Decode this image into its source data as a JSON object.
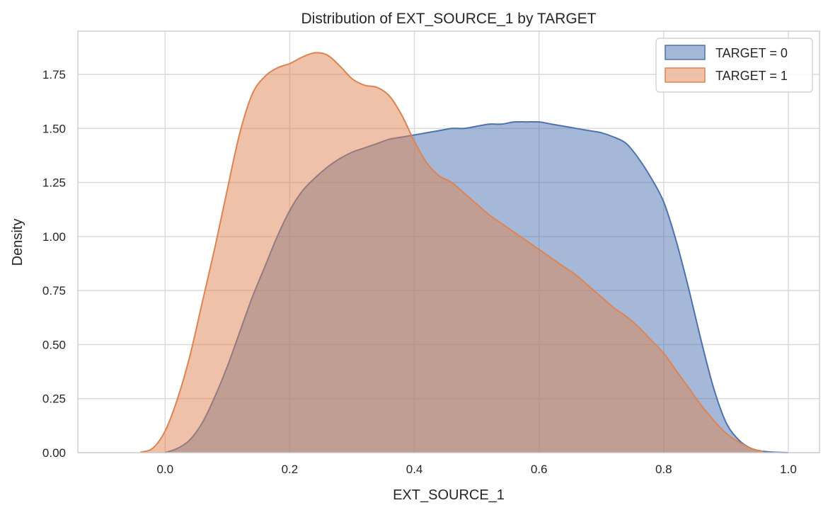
{
  "chart_data": {
    "type": "area",
    "title": "Distribution of EXT_SOURCE_1 by TARGET",
    "xlabel": "EXT_SOURCE_1",
    "ylabel": "Density",
    "xlim": [
      -0.14,
      1.05
    ],
    "ylim": [
      0,
      1.95
    ],
    "xticks": [
      0.0,
      0.2,
      0.4,
      0.6,
      0.8,
      1.0
    ],
    "xtick_labels": [
      "0.0",
      "0.2",
      "0.4",
      "0.6",
      "0.8",
      "1.0"
    ],
    "yticks": [
      0.0,
      0.25,
      0.5,
      0.75,
      1.0,
      1.25,
      1.5,
      1.75
    ],
    "ytick_labels": [
      "0.00",
      "0.25",
      "0.50",
      "0.75",
      "1.00",
      "1.25",
      "1.50",
      "1.75"
    ],
    "grid": true,
    "legend": "top-right",
    "series": [
      {
        "name": "TARGET = 0",
        "color": "#4c72b0",
        "x": [
          0.0,
          0.02,
          0.04,
          0.06,
          0.08,
          0.1,
          0.12,
          0.14,
          0.16,
          0.18,
          0.2,
          0.22,
          0.24,
          0.26,
          0.28,
          0.3,
          0.32,
          0.34,
          0.36,
          0.38,
          0.4,
          0.42,
          0.44,
          0.46,
          0.48,
          0.5,
          0.52,
          0.54,
          0.56,
          0.58,
          0.6,
          0.62,
          0.64,
          0.66,
          0.68,
          0.7,
          0.72,
          0.74,
          0.76,
          0.78,
          0.8,
          0.82,
          0.84,
          0.86,
          0.88,
          0.9,
          0.92,
          0.94,
          0.96,
          0.98,
          1.0
        ],
        "values": [
          0.0,
          0.02,
          0.06,
          0.14,
          0.26,
          0.4,
          0.56,
          0.72,
          0.86,
          1.0,
          1.12,
          1.21,
          1.27,
          1.32,
          1.36,
          1.39,
          1.41,
          1.43,
          1.45,
          1.46,
          1.47,
          1.48,
          1.49,
          1.5,
          1.5,
          1.51,
          1.52,
          1.52,
          1.53,
          1.53,
          1.53,
          1.52,
          1.51,
          1.5,
          1.49,
          1.48,
          1.46,
          1.43,
          1.36,
          1.27,
          1.16,
          0.98,
          0.76,
          0.52,
          0.3,
          0.14,
          0.06,
          0.02,
          0.006,
          0.002,
          0.0
        ]
      },
      {
        "name": "TARGET = 1",
        "color": "#dd8452",
        "x": [
          -0.04,
          -0.02,
          0.0,
          0.02,
          0.04,
          0.06,
          0.08,
          0.1,
          0.12,
          0.14,
          0.16,
          0.18,
          0.2,
          0.22,
          0.24,
          0.26,
          0.28,
          0.3,
          0.32,
          0.34,
          0.36,
          0.38,
          0.4,
          0.42,
          0.44,
          0.46,
          0.48,
          0.5,
          0.52,
          0.54,
          0.56,
          0.58,
          0.6,
          0.62,
          0.64,
          0.66,
          0.68,
          0.7,
          0.72,
          0.74,
          0.76,
          0.78,
          0.8,
          0.82,
          0.84,
          0.86,
          0.88,
          0.9,
          0.92,
          0.94,
          0.96
        ],
        "values": [
          0.002,
          0.02,
          0.1,
          0.25,
          0.45,
          0.7,
          0.95,
          1.22,
          1.48,
          1.66,
          1.74,
          1.78,
          1.8,
          1.83,
          1.85,
          1.84,
          1.79,
          1.73,
          1.7,
          1.69,
          1.65,
          1.56,
          1.44,
          1.34,
          1.28,
          1.25,
          1.2,
          1.15,
          1.1,
          1.06,
          1.02,
          0.98,
          0.94,
          0.9,
          0.86,
          0.82,
          0.77,
          0.72,
          0.67,
          0.63,
          0.58,
          0.52,
          0.46,
          0.38,
          0.3,
          0.22,
          0.15,
          0.09,
          0.05,
          0.02,
          0.005
        ]
      }
    ]
  }
}
